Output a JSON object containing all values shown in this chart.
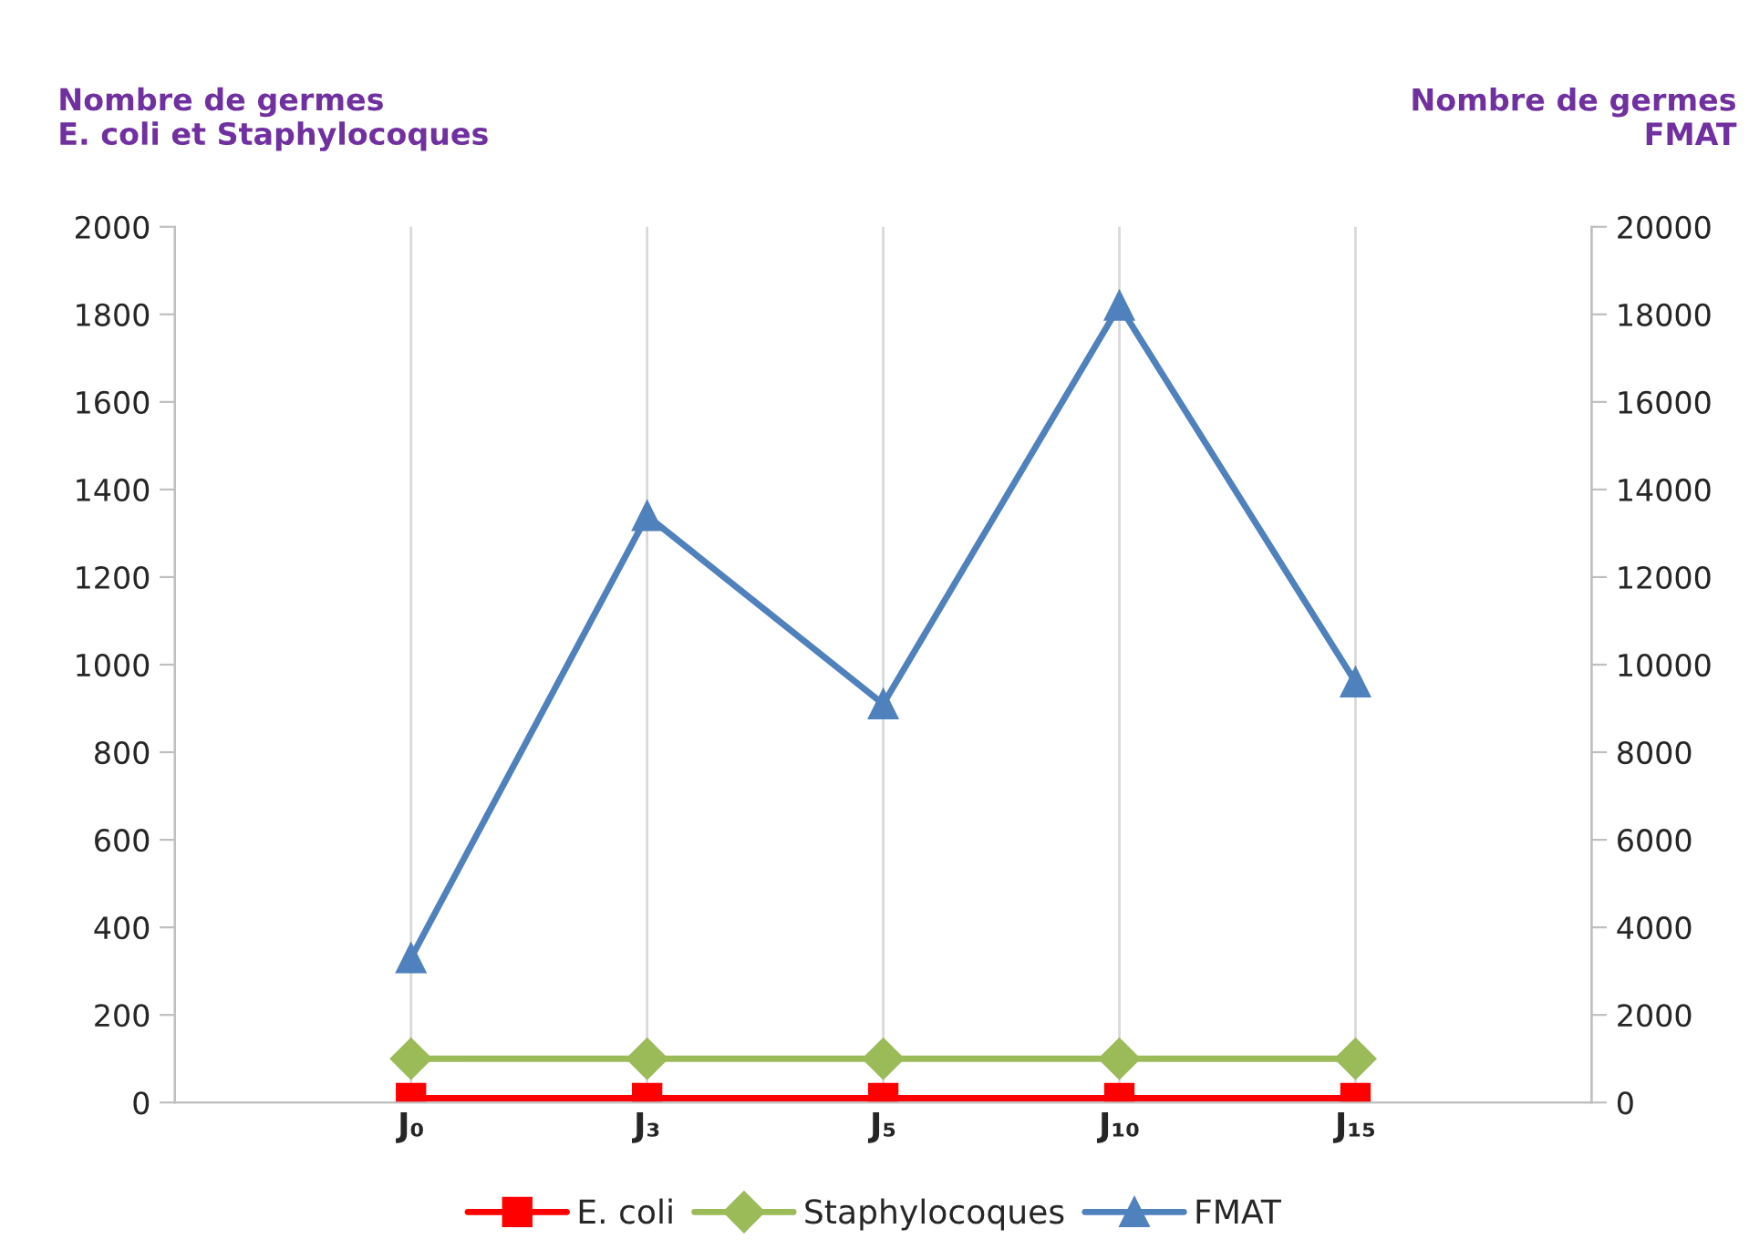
{
  "chart_data": {
    "type": "line",
    "ylabel": "Nombre de germes\nE. coli et Staphylocoques",
    "y2label": "Nombre de germes\nFMAT",
    "categories": [
      "J₀",
      "J₃",
      "J₅",
      "J₁₀",
      "J₁₅"
    ],
    "series": [
      {
        "name": "E. coli",
        "color": "#ff0000",
        "marker": "square",
        "values": [
          10,
          10,
          10,
          10,
          10
        ]
      },
      {
        "name": "Staphylocoques",
        "color": "#9bbb59",
        "marker": "diamond",
        "values": [
          100,
          100,
          100,
          100,
          100
        ]
      },
      {
        "name": "FMAT",
        "color": "#4f81bd",
        "marker": "triangle",
        "axis": "y2",
        "values": [
          3300,
          13400,
          9100,
          18200,
          9600
        ]
      }
    ],
    "ylim": [
      0,
      2000
    ],
    "yticks": [
      0,
      200,
      400,
      600,
      800,
      1000,
      1200,
      1400,
      1600,
      1800,
      2000
    ],
    "y2lim": [
      0,
      20000
    ],
    "y2ticks": [
      0,
      2000,
      4000,
      6000,
      8000,
      10000,
      12000,
      14000,
      16000,
      18000,
      20000
    ],
    "grid": "x",
    "legend": "bottom",
    "line_style": "solid"
  }
}
